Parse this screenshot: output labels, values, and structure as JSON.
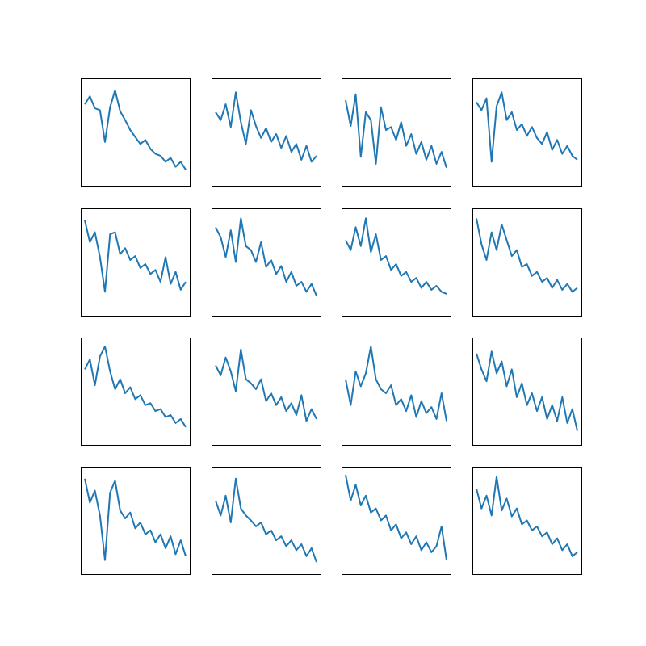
{
  "figure": {
    "rows": 4,
    "cols": 4
  },
  "style": {
    "line_color": "#1f77b4",
    "frame_color": "#000000",
    "background": "#ffffff"
  },
  "chart_data": [
    {
      "type": "line",
      "x": [
        0,
        5,
        10,
        15,
        20,
        25,
        30,
        35,
        40,
        45,
        50,
        55,
        60,
        65,
        70,
        75,
        80,
        85,
        90,
        95,
        100
      ],
      "values": [
        0.78,
        0.86,
        0.74,
        0.72,
        0.4,
        0.75,
        0.92,
        0.71,
        0.62,
        0.52,
        0.45,
        0.38,
        0.42,
        0.33,
        0.28,
        0.26,
        0.2,
        0.24,
        0.15,
        0.2,
        0.12
      ],
      "xlim": [
        0,
        100
      ],
      "ylim": [
        0,
        1
      ],
      "ticks": false
    },
    {
      "type": "line",
      "x": [
        0,
        5,
        10,
        15,
        20,
        25,
        30,
        35,
        40,
        45,
        50,
        55,
        60,
        65,
        70,
        75,
        80,
        85,
        90,
        95,
        100
      ],
      "values": [
        0.7,
        0.62,
        0.78,
        0.55,
        0.9,
        0.6,
        0.38,
        0.72,
        0.56,
        0.44,
        0.54,
        0.4,
        0.48,
        0.34,
        0.46,
        0.3,
        0.38,
        0.22,
        0.36,
        0.2,
        0.26
      ],
      "xlim": [
        0,
        100
      ],
      "ylim": [
        0,
        1
      ],
      "ticks": false
    },
    {
      "type": "line",
      "x": [
        0,
        5,
        10,
        15,
        20,
        25,
        30,
        35,
        40,
        45,
        50,
        55,
        60,
        65,
        70,
        75,
        80,
        85,
        90,
        95,
        100
      ],
      "values": [
        0.82,
        0.56,
        0.88,
        0.25,
        0.7,
        0.62,
        0.18,
        0.75,
        0.52,
        0.55,
        0.42,
        0.6,
        0.36,
        0.48,
        0.28,
        0.4,
        0.22,
        0.36,
        0.18,
        0.3,
        0.14
      ],
      "xlim": [
        0,
        100
      ],
      "ylim": [
        0,
        1
      ],
      "ticks": false
    },
    {
      "type": "line",
      "x": [
        0,
        5,
        10,
        15,
        20,
        25,
        30,
        35,
        40,
        45,
        50,
        55,
        60,
        65,
        70,
        75,
        80,
        85,
        90,
        95,
        100
      ],
      "values": [
        0.8,
        0.72,
        0.84,
        0.2,
        0.76,
        0.9,
        0.62,
        0.7,
        0.52,
        0.58,
        0.46,
        0.55,
        0.44,
        0.38,
        0.5,
        0.32,
        0.42,
        0.28,
        0.36,
        0.26,
        0.22
      ],
      "xlim": [
        0,
        100
      ],
      "ylim": [
        0,
        1
      ],
      "ticks": false
    },
    {
      "type": "line",
      "x": [
        0,
        5,
        10,
        15,
        20,
        25,
        30,
        35,
        40,
        45,
        50,
        55,
        60,
        65,
        70,
        75,
        80,
        85,
        90,
        95,
        100
      ],
      "values": [
        0.92,
        0.7,
        0.8,
        0.55,
        0.2,
        0.78,
        0.8,
        0.58,
        0.64,
        0.52,
        0.56,
        0.44,
        0.48,
        0.38,
        0.42,
        0.3,
        0.55,
        0.28,
        0.4,
        0.22,
        0.3
      ],
      "xlim": [
        0,
        100
      ],
      "ylim": [
        0,
        1
      ],
      "ticks": false
    },
    {
      "type": "line",
      "x": [
        0,
        5,
        10,
        15,
        20,
        25,
        30,
        35,
        40,
        45,
        50,
        55,
        60,
        65,
        70,
        75,
        80,
        85,
        90,
        95,
        100
      ],
      "values": [
        0.85,
        0.75,
        0.55,
        0.82,
        0.5,
        0.94,
        0.66,
        0.62,
        0.5,
        0.7,
        0.45,
        0.52,
        0.38,
        0.46,
        0.3,
        0.4,
        0.26,
        0.3,
        0.2,
        0.28,
        0.16
      ],
      "xlim": [
        0,
        100
      ],
      "ylim": [
        0,
        1
      ],
      "ticks": false
    },
    {
      "type": "line",
      "x": [
        0,
        5,
        10,
        15,
        20,
        25,
        30,
        35,
        40,
        45,
        50,
        55,
        60,
        65,
        70,
        75,
        80,
        85,
        90,
        95,
        100
      ],
      "values": [
        0.72,
        0.62,
        0.85,
        0.66,
        0.94,
        0.6,
        0.78,
        0.52,
        0.56,
        0.42,
        0.48,
        0.36,
        0.4,
        0.3,
        0.34,
        0.24,
        0.3,
        0.22,
        0.26,
        0.2,
        0.18
      ],
      "xlim": [
        0,
        100
      ],
      "ylim": [
        0,
        1
      ],
      "ticks": false
    },
    {
      "type": "line",
      "x": [
        0,
        5,
        10,
        15,
        20,
        25,
        30,
        35,
        40,
        45,
        50,
        55,
        60,
        65,
        70,
        75,
        80,
        85,
        90,
        95,
        100
      ],
      "values": [
        0.94,
        0.68,
        0.52,
        0.8,
        0.62,
        0.88,
        0.72,
        0.56,
        0.62,
        0.45,
        0.48,
        0.36,
        0.4,
        0.3,
        0.34,
        0.24,
        0.32,
        0.22,
        0.28,
        0.2,
        0.24
      ],
      "xlim": [
        0,
        100
      ],
      "ylim": [
        0,
        1
      ],
      "ticks": false
    },
    {
      "type": "line",
      "x": [
        0,
        5,
        10,
        15,
        20,
        25,
        30,
        35,
        40,
        45,
        50,
        55,
        60,
        65,
        70,
        75,
        80,
        85,
        90,
        95,
        100
      ],
      "values": [
        0.72,
        0.82,
        0.56,
        0.85,
        0.95,
        0.7,
        0.52,
        0.62,
        0.48,
        0.54,
        0.42,
        0.46,
        0.36,
        0.38,
        0.3,
        0.32,
        0.24,
        0.26,
        0.18,
        0.22,
        0.14
      ],
      "xlim": [
        0,
        100
      ],
      "ylim": [
        0,
        1
      ],
      "ticks": false
    },
    {
      "type": "line",
      "x": [
        0,
        5,
        10,
        15,
        20,
        25,
        30,
        35,
        40,
        45,
        50,
        55,
        60,
        65,
        70,
        75,
        80,
        85,
        90,
        95,
        100
      ],
      "values": [
        0.76,
        0.66,
        0.84,
        0.7,
        0.5,
        0.92,
        0.62,
        0.58,
        0.52,
        0.62,
        0.4,
        0.48,
        0.36,
        0.44,
        0.3,
        0.38,
        0.26,
        0.46,
        0.2,
        0.32,
        0.22
      ],
      "xlim": [
        0,
        100
      ],
      "ylim": [
        0,
        1
      ],
      "ticks": false
    },
    {
      "type": "line",
      "x": [
        0,
        5,
        10,
        15,
        20,
        25,
        30,
        35,
        40,
        45,
        50,
        55,
        60,
        65,
        70,
        75,
        80,
        85,
        90,
        95,
        100
      ],
      "values": [
        0.62,
        0.36,
        0.7,
        0.55,
        0.68,
        0.95,
        0.62,
        0.52,
        0.48,
        0.56,
        0.36,
        0.42,
        0.3,
        0.46,
        0.24,
        0.4,
        0.28,
        0.34,
        0.22,
        0.48,
        0.2
      ],
      "xlim": [
        0,
        100
      ],
      "ylim": [
        0,
        1
      ],
      "ticks": false
    },
    {
      "type": "line",
      "x": [
        0,
        5,
        10,
        15,
        20,
        25,
        30,
        35,
        40,
        45,
        50,
        55,
        60,
        65,
        70,
        75,
        80,
        85,
        90,
        95,
        100
      ],
      "values": [
        0.88,
        0.72,
        0.6,
        0.9,
        0.68,
        0.8,
        0.55,
        0.72,
        0.44,
        0.58,
        0.36,
        0.48,
        0.3,
        0.44,
        0.22,
        0.36,
        0.2,
        0.44,
        0.18,
        0.32,
        0.1
      ],
      "xlim": [
        0,
        100
      ],
      "ylim": [
        0,
        1
      ],
      "ticks": false
    },
    {
      "type": "line",
      "x": [
        0,
        5,
        10,
        15,
        20,
        25,
        30,
        35,
        40,
        45,
        50,
        55,
        60,
        65,
        70,
        75,
        80,
        85,
        90,
        95,
        100
      ],
      "values": [
        0.92,
        0.68,
        0.8,
        0.55,
        0.1,
        0.78,
        0.9,
        0.6,
        0.52,
        0.58,
        0.42,
        0.48,
        0.36,
        0.4,
        0.28,
        0.36,
        0.22,
        0.34,
        0.16,
        0.3,
        0.14
      ],
      "xlim": [
        0,
        100
      ],
      "ylim": [
        0,
        1
      ],
      "ticks": false
    },
    {
      "type": "line",
      "x": [
        0,
        5,
        10,
        15,
        20,
        25,
        30,
        35,
        40,
        45,
        50,
        55,
        60,
        65,
        70,
        75,
        80,
        85,
        90,
        95,
        100
      ],
      "values": [
        0.7,
        0.55,
        0.75,
        0.48,
        0.92,
        0.62,
        0.55,
        0.5,
        0.44,
        0.48,
        0.36,
        0.4,
        0.3,
        0.34,
        0.24,
        0.3,
        0.2,
        0.26,
        0.14,
        0.22,
        0.08
      ],
      "xlim": [
        0,
        100
      ],
      "ylim": [
        0,
        1
      ],
      "ticks": false
    },
    {
      "type": "line",
      "x": [
        0,
        5,
        10,
        15,
        20,
        25,
        30,
        35,
        40,
        45,
        50,
        55,
        60,
        65,
        70,
        75,
        80,
        85,
        90,
        95,
        100
      ],
      "values": [
        0.96,
        0.7,
        0.86,
        0.65,
        0.75,
        0.58,
        0.62,
        0.5,
        0.55,
        0.4,
        0.46,
        0.32,
        0.38,
        0.26,
        0.34,
        0.2,
        0.28,
        0.18,
        0.24,
        0.44,
        0.1
      ],
      "xlim": [
        0,
        100
      ],
      "ylim": [
        0,
        1
      ],
      "ticks": false
    },
    {
      "type": "line",
      "x": [
        0,
        5,
        10,
        15,
        20,
        25,
        30,
        35,
        40,
        45,
        50,
        55,
        60,
        65,
        70,
        75,
        80,
        85,
        90,
        95,
        100
      ],
      "values": [
        0.82,
        0.62,
        0.75,
        0.55,
        0.94,
        0.6,
        0.72,
        0.54,
        0.62,
        0.46,
        0.5,
        0.4,
        0.44,
        0.34,
        0.38,
        0.26,
        0.32,
        0.2,
        0.26,
        0.14,
        0.18
      ],
      "xlim": [
        0,
        100
      ],
      "ylim": [
        0,
        1
      ],
      "ticks": false
    }
  ]
}
